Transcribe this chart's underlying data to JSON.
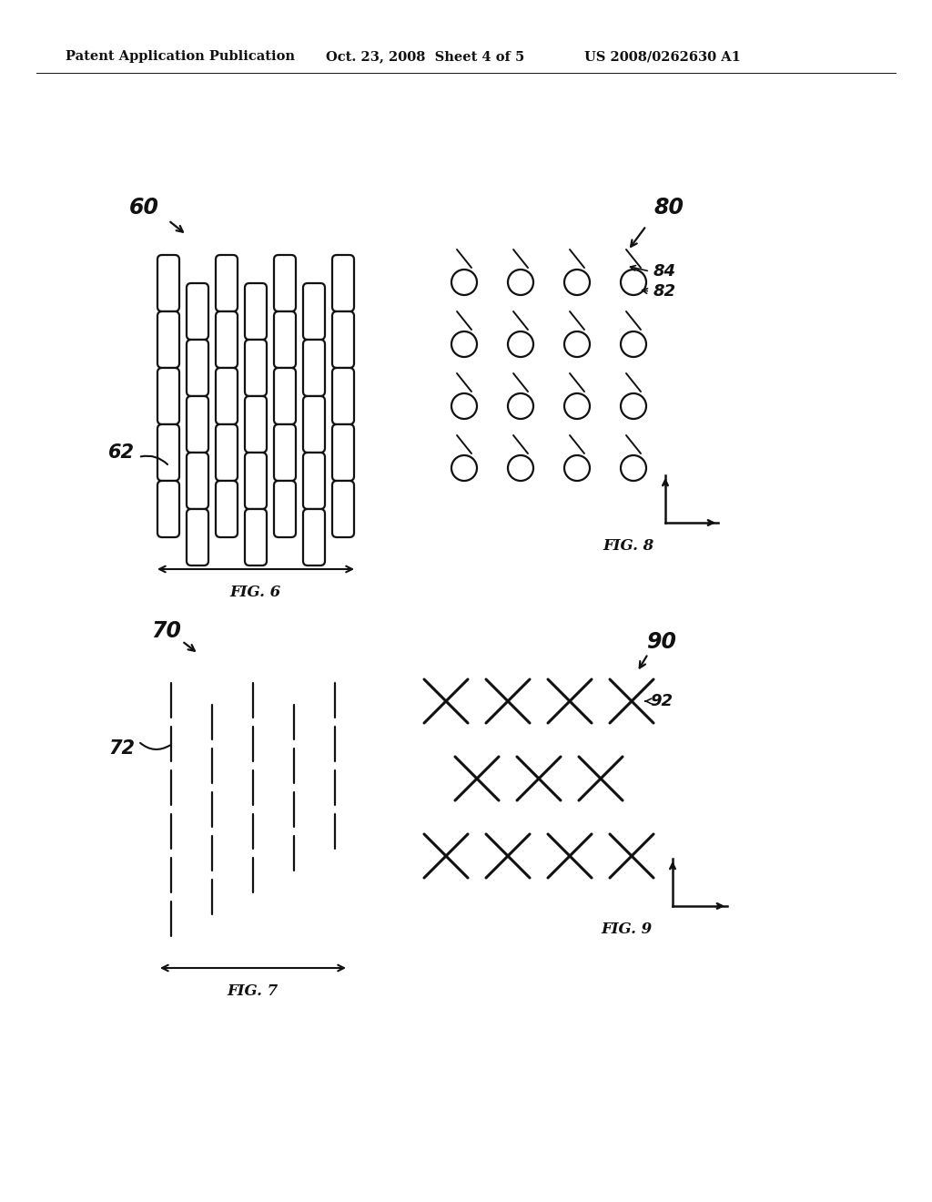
{
  "header_left": "Patent Application Publication",
  "header_mid": "Oct. 23, 2008  Sheet 4 of 5",
  "header_right": "US 2008/0262630 A1",
  "fig6_label": "60",
  "fig6_sub_label": "62",
  "fig6_caption": "FIG. 6",
  "fig7_label": "70",
  "fig7_sub_label": "72",
  "fig7_caption": "FIG. 7",
  "fig8_label": "80",
  "fig8_sub84": "84",
  "fig8_sub82": "82",
  "fig8_caption": "FIG. 8",
  "fig9_label": "90",
  "fig9_sub_label": "92",
  "fig9_caption": "FIG. 9",
  "bg_color": "#ffffff",
  "ink_color": "#111111"
}
